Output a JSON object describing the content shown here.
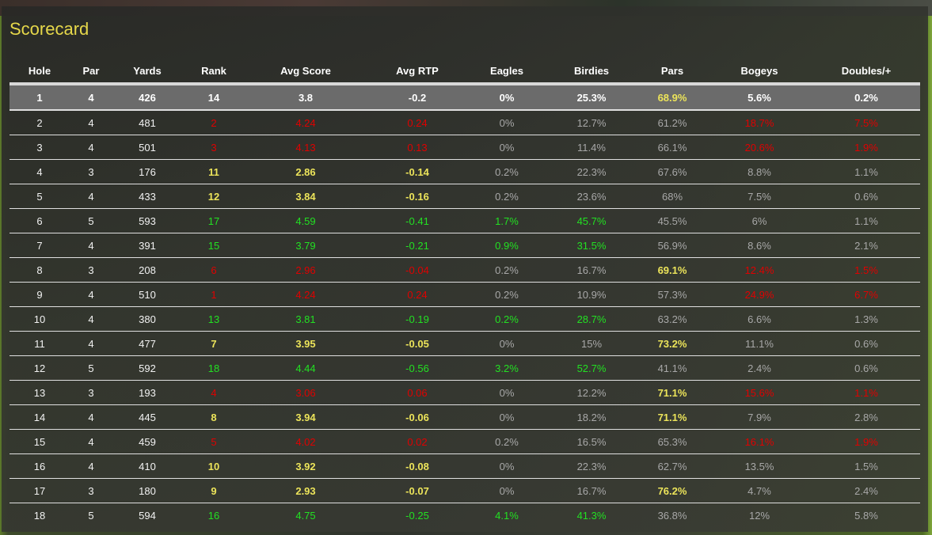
{
  "title": "Scorecard",
  "colors": {
    "red": "#e00000",
    "yellow": "#ece45a",
    "green": "#22e022",
    "gray": "#a8a8a8",
    "highlight_row": "#6b6b6b"
  },
  "columns": [
    "Hole",
    "Par",
    "Yards",
    "Rank",
    "Avg Score",
    "Avg RTP",
    "Eagles",
    "Birdies",
    "Pars",
    "Bogeys",
    "Doubles/+"
  ],
  "rows": [
    {
      "highlight": true,
      "cells": [
        [
          "1",
          "wb"
        ],
        [
          "4",
          "wb"
        ],
        [
          "426",
          "wb"
        ],
        [
          "14",
          "wb"
        ],
        [
          "3.8",
          "wb"
        ],
        [
          "-0.2",
          "wb"
        ],
        [
          "0%",
          "wb"
        ],
        [
          "25.3%",
          "wb"
        ],
        [
          "68.9%",
          "y"
        ],
        [
          "5.6%",
          "wb"
        ],
        [
          "0.2%",
          "wb"
        ]
      ]
    },
    {
      "cells": [
        [
          "2",
          "w"
        ],
        [
          "4",
          "w"
        ],
        [
          "481",
          "w"
        ],
        [
          "2",
          "r"
        ],
        [
          "4.24",
          "r"
        ],
        [
          "0.24",
          "r"
        ],
        [
          "0%",
          "d"
        ],
        [
          "12.7%",
          "d"
        ],
        [
          "61.2%",
          "d"
        ],
        [
          "18.7%",
          "r"
        ],
        [
          "7.5%",
          "r"
        ]
      ]
    },
    {
      "cells": [
        [
          "3",
          "w"
        ],
        [
          "4",
          "w"
        ],
        [
          "501",
          "w"
        ],
        [
          "3",
          "r"
        ],
        [
          "4.13",
          "r"
        ],
        [
          "0.13",
          "r"
        ],
        [
          "0%",
          "d"
        ],
        [
          "11.4%",
          "d"
        ],
        [
          "66.1%",
          "d"
        ],
        [
          "20.6%",
          "r"
        ],
        [
          "1.9%",
          "r"
        ]
      ]
    },
    {
      "cells": [
        [
          "4",
          "w"
        ],
        [
          "3",
          "w"
        ],
        [
          "176",
          "w"
        ],
        [
          "11",
          "y"
        ],
        [
          "2.86",
          "y"
        ],
        [
          "-0.14",
          "y"
        ],
        [
          "0.2%",
          "d"
        ],
        [
          "22.3%",
          "d"
        ],
        [
          "67.6%",
          "d"
        ],
        [
          "8.8%",
          "d"
        ],
        [
          "1.1%",
          "d"
        ]
      ]
    },
    {
      "cells": [
        [
          "5",
          "w"
        ],
        [
          "4",
          "w"
        ],
        [
          "433",
          "w"
        ],
        [
          "12",
          "y"
        ],
        [
          "3.84",
          "y"
        ],
        [
          "-0.16",
          "y"
        ],
        [
          "0.2%",
          "d"
        ],
        [
          "23.6%",
          "d"
        ],
        [
          "68%",
          "d"
        ],
        [
          "7.5%",
          "d"
        ],
        [
          "0.6%",
          "d"
        ]
      ]
    },
    {
      "cells": [
        [
          "6",
          "w"
        ],
        [
          "5",
          "w"
        ],
        [
          "593",
          "w"
        ],
        [
          "17",
          "g"
        ],
        [
          "4.59",
          "g"
        ],
        [
          "-0.41",
          "g"
        ],
        [
          "1.7%",
          "g"
        ],
        [
          "45.7%",
          "g"
        ],
        [
          "45.5%",
          "d"
        ],
        [
          "6%",
          "d"
        ],
        [
          "1.1%",
          "d"
        ]
      ]
    },
    {
      "cells": [
        [
          "7",
          "w"
        ],
        [
          "4",
          "w"
        ],
        [
          "391",
          "w"
        ],
        [
          "15",
          "g"
        ],
        [
          "3.79",
          "g"
        ],
        [
          "-0.21",
          "g"
        ],
        [
          "0.9%",
          "g"
        ],
        [
          "31.5%",
          "g"
        ],
        [
          "56.9%",
          "d"
        ],
        [
          "8.6%",
          "d"
        ],
        [
          "2.1%",
          "d"
        ]
      ]
    },
    {
      "cells": [
        [
          "8",
          "w"
        ],
        [
          "3",
          "w"
        ],
        [
          "208",
          "w"
        ],
        [
          "6",
          "r"
        ],
        [
          "2.96",
          "r"
        ],
        [
          "-0.04",
          "r"
        ],
        [
          "0.2%",
          "d"
        ],
        [
          "16.7%",
          "d"
        ],
        [
          "69.1%",
          "y"
        ],
        [
          "12.4%",
          "r"
        ],
        [
          "1.5%",
          "r"
        ]
      ]
    },
    {
      "cells": [
        [
          "9",
          "w"
        ],
        [
          "4",
          "w"
        ],
        [
          "510",
          "w"
        ],
        [
          "1",
          "r"
        ],
        [
          "4.24",
          "r"
        ],
        [
          "0.24",
          "r"
        ],
        [
          "0.2%",
          "d"
        ],
        [
          "10.9%",
          "d"
        ],
        [
          "57.3%",
          "d"
        ],
        [
          "24.9%",
          "r"
        ],
        [
          "6.7%",
          "r"
        ]
      ]
    },
    {
      "cells": [
        [
          "10",
          "w"
        ],
        [
          "4",
          "w"
        ],
        [
          "380",
          "w"
        ],
        [
          "13",
          "g"
        ],
        [
          "3.81",
          "g"
        ],
        [
          "-0.19",
          "g"
        ],
        [
          "0.2%",
          "g"
        ],
        [
          "28.7%",
          "g"
        ],
        [
          "63.2%",
          "d"
        ],
        [
          "6.6%",
          "d"
        ],
        [
          "1.3%",
          "d"
        ]
      ]
    },
    {
      "cells": [
        [
          "11",
          "w"
        ],
        [
          "4",
          "w"
        ],
        [
          "477",
          "w"
        ],
        [
          "7",
          "y"
        ],
        [
          "3.95",
          "y"
        ],
        [
          "-0.05",
          "y"
        ],
        [
          "0%",
          "d"
        ],
        [
          "15%",
          "d"
        ],
        [
          "73.2%",
          "y"
        ],
        [
          "11.1%",
          "d"
        ],
        [
          "0.6%",
          "d"
        ]
      ]
    },
    {
      "cells": [
        [
          "12",
          "w"
        ],
        [
          "5",
          "w"
        ],
        [
          "592",
          "w"
        ],
        [
          "18",
          "g"
        ],
        [
          "4.44",
          "g"
        ],
        [
          "-0.56",
          "g"
        ],
        [
          "3.2%",
          "g"
        ],
        [
          "52.7%",
          "g"
        ],
        [
          "41.1%",
          "d"
        ],
        [
          "2.4%",
          "d"
        ],
        [
          "0.6%",
          "d"
        ]
      ]
    },
    {
      "cells": [
        [
          "13",
          "w"
        ],
        [
          "3",
          "w"
        ],
        [
          "193",
          "w"
        ],
        [
          "4",
          "r"
        ],
        [
          "3.06",
          "r"
        ],
        [
          "0.06",
          "r"
        ],
        [
          "0%",
          "d"
        ],
        [
          "12.2%",
          "d"
        ],
        [
          "71.1%",
          "y"
        ],
        [
          "15.6%",
          "r"
        ],
        [
          "1.1%",
          "r"
        ]
      ]
    },
    {
      "cells": [
        [
          "14",
          "w"
        ],
        [
          "4",
          "w"
        ],
        [
          "445",
          "w"
        ],
        [
          "8",
          "y"
        ],
        [
          "3.94",
          "y"
        ],
        [
          "-0.06",
          "y"
        ],
        [
          "0%",
          "d"
        ],
        [
          "18.2%",
          "d"
        ],
        [
          "71.1%",
          "y"
        ],
        [
          "7.9%",
          "d"
        ],
        [
          "2.8%",
          "d"
        ]
      ]
    },
    {
      "cells": [
        [
          "15",
          "w"
        ],
        [
          "4",
          "w"
        ],
        [
          "459",
          "w"
        ],
        [
          "5",
          "r"
        ],
        [
          "4.02",
          "r"
        ],
        [
          "0.02",
          "r"
        ],
        [
          "0.2%",
          "d"
        ],
        [
          "16.5%",
          "d"
        ],
        [
          "65.3%",
          "d"
        ],
        [
          "16.1%",
          "r"
        ],
        [
          "1.9%",
          "r"
        ]
      ]
    },
    {
      "cells": [
        [
          "16",
          "w"
        ],
        [
          "4",
          "w"
        ],
        [
          "410",
          "w"
        ],
        [
          "10",
          "y"
        ],
        [
          "3.92",
          "y"
        ],
        [
          "-0.08",
          "y"
        ],
        [
          "0%",
          "d"
        ],
        [
          "22.3%",
          "d"
        ],
        [
          "62.7%",
          "d"
        ],
        [
          "13.5%",
          "d"
        ],
        [
          "1.5%",
          "d"
        ]
      ]
    },
    {
      "cells": [
        [
          "17",
          "w"
        ],
        [
          "3",
          "w"
        ],
        [
          "180",
          "w"
        ],
        [
          "9",
          "y"
        ],
        [
          "2.93",
          "y"
        ],
        [
          "-0.07",
          "y"
        ],
        [
          "0%",
          "d"
        ],
        [
          "16.7%",
          "d"
        ],
        [
          "76.2%",
          "y"
        ],
        [
          "4.7%",
          "d"
        ],
        [
          "2.4%",
          "d"
        ]
      ]
    },
    {
      "cells": [
        [
          "18",
          "w"
        ],
        [
          "5",
          "w"
        ],
        [
          "594",
          "w"
        ],
        [
          "16",
          "g"
        ],
        [
          "4.75",
          "g"
        ],
        [
          "-0.25",
          "g"
        ],
        [
          "4.1%",
          "g"
        ],
        [
          "41.3%",
          "g"
        ],
        [
          "36.8%",
          "d"
        ],
        [
          "12%",
          "d"
        ],
        [
          "5.8%",
          "d"
        ]
      ]
    }
  ]
}
